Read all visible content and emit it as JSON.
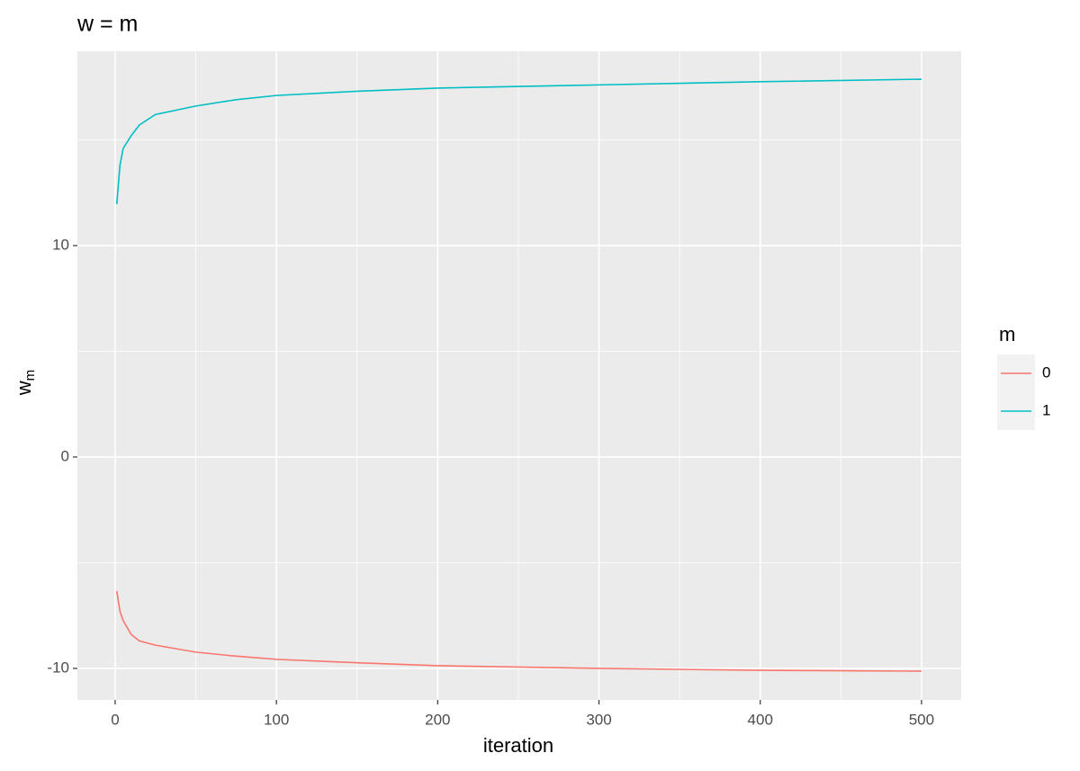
{
  "chart_data": {
    "type": "line",
    "title": "w = m",
    "x_label": "iteration",
    "y_label": "w",
    "y_label_subscript": "m",
    "legend_title": "m",
    "legend_position": "right",
    "x": [
      1,
      3,
      5,
      10,
      15,
      25,
      50,
      75,
      100,
      150,
      200,
      300,
      400,
      500
    ],
    "series": [
      {
        "name": "0",
        "color": "#F8766D",
        "values": [
          -6.34,
          -7.3,
          -7.74,
          -8.4,
          -8.7,
          -8.9,
          -9.23,
          -9.42,
          -9.57,
          -9.73,
          -9.87,
          -10.0,
          -10.09,
          -10.13
        ]
      },
      {
        "name": "1",
        "color": "#00BFC4",
        "values": [
          11.96,
          13.8,
          14.6,
          15.2,
          15.7,
          16.2,
          16.6,
          16.9,
          17.1,
          17.3,
          17.45,
          17.6,
          17.75,
          17.87
        ]
      }
    ],
    "xlim": [
      -23.4,
      524.6
    ],
    "ylim": [
      -11.49,
      19.19
    ],
    "xticks": [
      0,
      100,
      200,
      300,
      400,
      500
    ],
    "yticks": [
      -10,
      0,
      10
    ],
    "minor_xticks": [
      50,
      150,
      250,
      350,
      450
    ],
    "minor_yticks": [
      -5,
      5,
      15
    ],
    "grid": true
  }
}
